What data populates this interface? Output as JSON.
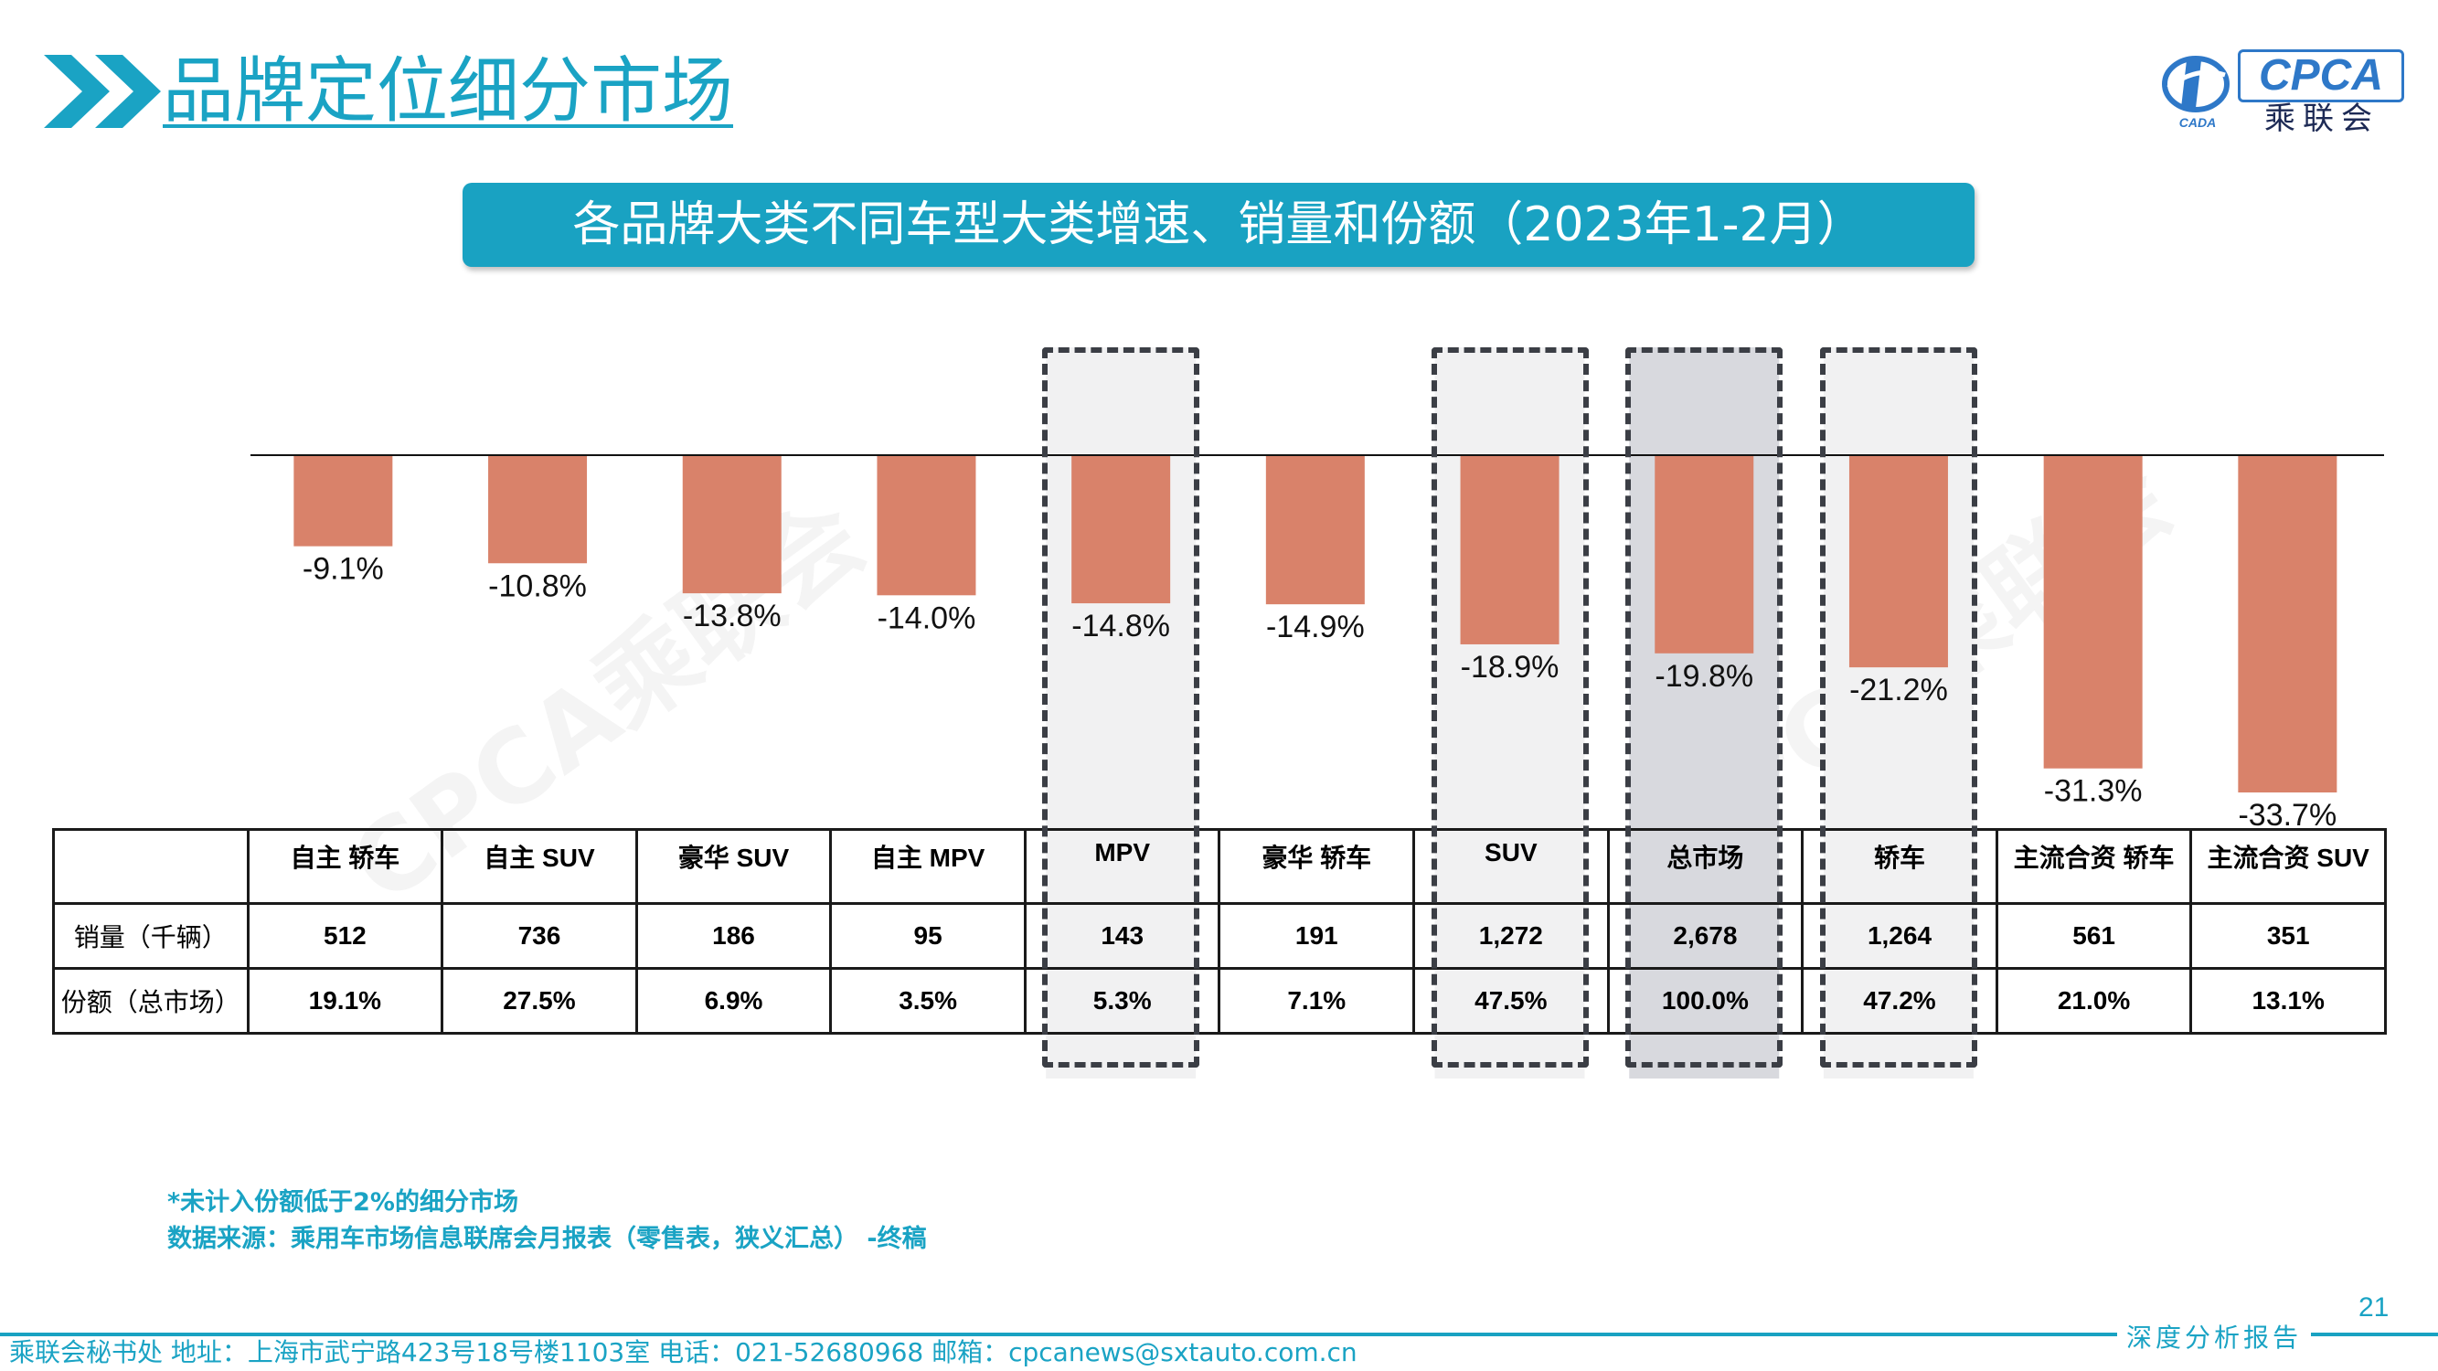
{
  "header": {
    "title": "品牌定位细分市场",
    "logo_text": "CPCA",
    "logo_cn": "乘联会",
    "logo_sub": "CADA"
  },
  "banner": {
    "text": "各品牌大类不同车型大类增速、销量和份额（2023年1-2月）"
  },
  "colors": {
    "accent": "#19a2c2",
    "bar": "#d9826a",
    "highlight_fill": "#d8d9de"
  },
  "watermark": "CPCA乘联会",
  "chart_data": {
    "type": "bar",
    "categories": [
      "自主 轿车",
      "自主 SUV",
      "豪华 SUV",
      "自主 MPV",
      "MPV",
      "豪华 轿车",
      "SUV",
      "总市场",
      "轿车",
      "主流合资 轿车",
      "主流合资 SUV"
    ],
    "values": [
      -9.1,
      -10.8,
      -13.8,
      -14.0,
      -14.8,
      -14.9,
      -18.9,
      -19.8,
      -21.2,
      -31.3,
      -33.7
    ],
    "value_labels": [
      "-9.1%",
      "-10.8%",
      "-13.8%",
      "-14.0%",
      "-14.8%",
      "-14.9%",
      "-18.9%",
      "-19.8%",
      "-21.2%",
      "-31.3%",
      "-33.7%"
    ],
    "unit": "%",
    "ylim": [
      -35,
      0
    ],
    "grid": false,
    "legend": "none",
    "highlighted": [
      "MPV",
      "SUV",
      "总市场",
      "轿车"
    ],
    "shaded": [
      "总市场"
    ]
  },
  "table": {
    "headers": [
      "",
      "自主 轿车",
      "自主 SUV",
      "豪华 SUV",
      "自主 MPV",
      "MPV",
      "豪华 轿车",
      "SUV",
      "总市场",
      "轿车",
      "主流合资 轿车",
      "主流合资 SUV"
    ],
    "rows": [
      {
        "label": "销量（千辆）",
        "cells": [
          "512",
          "736",
          "186",
          "95",
          "143",
          "191",
          "1,272",
          "2,678",
          "1,264",
          "561",
          "351"
        ]
      },
      {
        "label": "份额（总市场）",
        "cells": [
          "19.1%",
          "27.5%",
          "6.9%",
          "3.5%",
          "5.3%",
          "7.1%",
          "47.5%",
          "100.0%",
          "47.2%",
          "21.0%",
          "13.1%"
        ]
      }
    ]
  },
  "notes": {
    "line1": "*未计入份额低于2%的细分市场",
    "line2": "数据来源：乘用车市场信息联席会月报表（零售表，狭义汇总） -终稿"
  },
  "page_number": "21",
  "footer": {
    "contact": "乘联会秘书处   地址：上海市武宁路423号18号楼1103室  电话：021-52680968   邮箱：cpcanews@sxtauto.com.cn",
    "report": "深度分析报告"
  }
}
